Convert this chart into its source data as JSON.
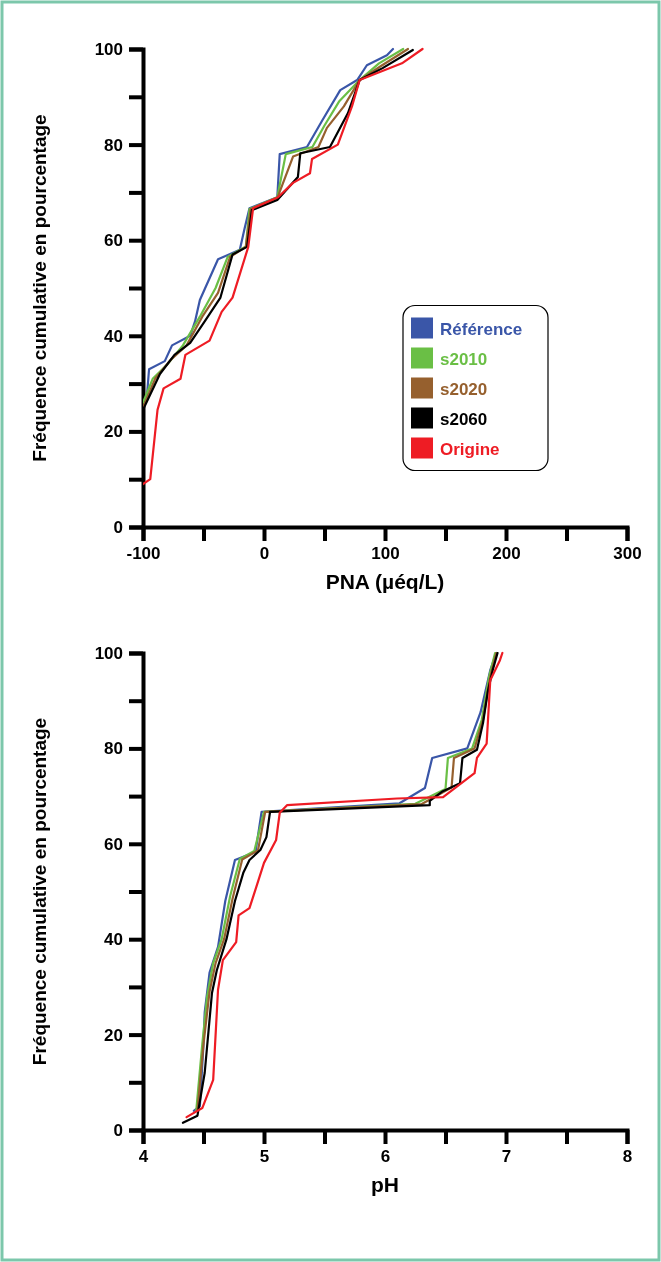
{
  "chart_data": [
    {
      "type": "line",
      "xlabel": "PNA (µéq/L)",
      "ylabel": "Fréquence cumulative en pourcentage",
      "xlim": [
        -100,
        300
      ],
      "ylim": [
        0,
        100
      ],
      "xticks": [
        -100,
        {
          "value": -50,
          "label": null
        },
        0,
        {
          "value": 50,
          "label": null
        },
        100,
        {
          "value": 150,
          "label": null
        },
        200,
        {
          "value": 250,
          "label": null
        },
        300
      ],
      "yticks": [
        0,
        {
          "value": 10,
          "label": null
        },
        20,
        {
          "value": 30,
          "label": null
        },
        40,
        {
          "value": 50,
          "label": null
        },
        60,
        {
          "value": 70,
          "label": null
        },
        80,
        {
          "value": 90,
          "label": null
        },
        100
      ],
      "grid": false,
      "legend": "right",
      "marker": "none",
      "line_style": "solid",
      "series": [
        {
          "name": "Référence",
          "color": "#3a56a8",
          "x": [
            -97,
            -95,
            -82,
            -76,
            -61,
            -57,
            -53,
            -38,
            -20,
            -16,
            -12,
            11,
            13,
            35.5,
            48,
            63,
            77,
            85,
            101.6,
            106.6
          ],
          "values": [
            26.6,
            33,
            34.7,
            38,
            40,
            43,
            47.5,
            56,
            58,
            62.5,
            66.7,
            69,
            78,
            79.5,
            85,
            91.4,
            93.5,
            96.6,
            98.7,
            100
          ]
        },
        {
          "name": "s2010",
          "color": "#6abf45",
          "x": [
            -100,
            -92,
            -80,
            -67,
            -53,
            -40,
            -30,
            -15,
            -12,
            11,
            18,
            40,
            50,
            62,
            79,
            95,
            115
          ],
          "values": [
            26,
            31,
            34,
            38,
            44,
            50,
            56.5,
            58.7,
            66.5,
            69,
            78,
            79.5,
            84,
            89,
            93.5,
            97,
            100
          ]
        },
        {
          "name": "s2020",
          "color": "#96602e",
          "x": [
            -100,
            -90,
            -77,
            -64,
            -51,
            -38,
            -28,
            -15,
            -11,
            11,
            24,
            45,
            52,
            66,
            79,
            97,
            119
          ],
          "values": [
            25,
            31,
            35,
            38,
            44,
            49,
            56.5,
            58.6,
            66.5,
            68.8,
            77.5,
            79.5,
            83.5,
            88,
            93.5,
            96.5,
            100
          ]
        },
        {
          "name": "s2060",
          "color": "#000000",
          "x": [
            -100,
            -86,
            -74,
            -61,
            -49,
            -36,
            -26,
            -14,
            -10,
            11,
            28,
            30,
            54.5,
            69.4,
            79,
            98,
            123
          ],
          "values": [
            24.5,
            32,
            36,
            38.5,
            43,
            48,
            57,
            58.6,
            66.3,
            68.4,
            73.2,
            78.2,
            79.5,
            86.6,
            93.5,
            96,
            99.8
          ]
        },
        {
          "name": "Origine",
          "color": "#ee1c24",
          "x": [
            -100,
            -94,
            -88,
            -83,
            -69,
            -65,
            -45,
            -35,
            -26,
            -13,
            -9,
            11.6,
            24,
            38,
            39.7,
            61,
            72.7,
            79,
            114,
            131
          ],
          "values": [
            9,
            10,
            24.5,
            29,
            31,
            36,
            39,
            45,
            48,
            58.6,
            66.7,
            69,
            72,
            74,
            77,
            80,
            88,
            93.5,
            97,
            100
          ]
        }
      ]
    },
    {
      "type": "line",
      "xlabel": "pH",
      "ylabel": "Fréquence cumulative en pourcentage",
      "xlim": [
        4,
        8
      ],
      "ylim": [
        0,
        100
      ],
      "xticks": [
        4,
        {
          "value": 4.5,
          "label": null
        },
        5,
        {
          "value": 5.5,
          "label": null
        },
        6,
        {
          "value": 6.5,
          "label": null
        },
        7,
        {
          "value": 7.5,
          "label": null
        },
        8
      ],
      "yticks": [
        0,
        {
          "value": 10,
          "label": null
        },
        20,
        {
          "value": 30,
          "label": null
        },
        40,
        {
          "value": 50,
          "label": null
        },
        60,
        {
          "value": 70,
          "label": null
        },
        80,
        {
          "value": 90,
          "label": null
        },
        100
      ],
      "grid": false,
      "legend": false,
      "marker": "none",
      "line_style": "solid",
      "series": [
        {
          "color": "#3a56a8",
          "x": [
            4.42,
            4.47,
            4.5,
            4.51,
            4.55,
            4.62,
            4.68,
            4.76,
            4.93,
            4.98,
            6.12,
            6.33,
            6.39,
            6.68,
            6.79,
            6.87,
            6.92
          ],
          "values": [
            4,
            5,
            18,
            24.7,
            33,
            38.4,
            48,
            56.6,
            58.3,
            66.7,
            68.5,
            71.7,
            78,
            80,
            87.6,
            96.4,
            100
          ]
        },
        {
          "color": "#6abf45",
          "x": [
            4.44,
            4.49,
            4.53,
            4.58,
            4.65,
            4.72,
            4.8,
            4.92,
            5.0,
            6.25,
            6.5,
            6.52,
            6.72,
            6.8,
            6.86,
            6.91
          ],
          "values": [
            4,
            18,
            28,
            35,
            40,
            49,
            56.8,
            58.5,
            66.7,
            68.4,
            71.5,
            78,
            80,
            86,
            95,
            100
          ]
        },
        {
          "color": "#96602e",
          "x": [
            4.45,
            4.5,
            4.55,
            4.6,
            4.67,
            4.74,
            4.82,
            4.95,
            5.01,
            6.3,
            6.55,
            6.57,
            6.74,
            6.81,
            6.87,
            6.92
          ],
          "values": [
            4,
            18,
            29,
            35,
            40,
            48.5,
            56.7,
            58.6,
            66.7,
            68.3,
            71.8,
            78,
            80,
            86,
            95,
            100
          ]
        },
        {
          "color": "#000000",
          "x": [
            4.33,
            4.45,
            4.51,
            4.57,
            4.61,
            4.69,
            4.76,
            4.83,
            4.88,
            4.97,
            5.02,
            5.05,
            6.37,
            6.37,
            6.47,
            6.62,
            6.64,
            6.76,
            6.81,
            6.85,
            6.89,
            6.93
          ],
          "values": [
            1.5,
            3,
            12,
            28.7,
            33.5,
            40,
            48,
            54,
            56.6,
            58.7,
            61.4,
            66.7,
            68.1,
            69,
            70.9,
            72.7,
            78,
            79.7,
            85.3,
            92,
            96.4,
            100
          ]
        },
        {
          "color": "#ee1c24",
          "x": [
            4.36,
            4.49,
            4.58,
            4.62,
            4.66,
            4.77,
            4.79,
            4.88,
            5.0,
            5.1,
            5.13,
            5.19,
            6.1,
            6.48,
            6.74,
            6.76,
            6.84,
            6.87,
            6.95,
            6.97
          ],
          "values": [
            2.7,
            4.6,
            10.5,
            29.4,
            35.6,
            39.4,
            45,
            46.5,
            56,
            60.8,
            66.5,
            68.1,
            69.5,
            69.8,
            74.8,
            78,
            81,
            94.3,
            98.5,
            100
          ]
        }
      ]
    }
  ]
}
